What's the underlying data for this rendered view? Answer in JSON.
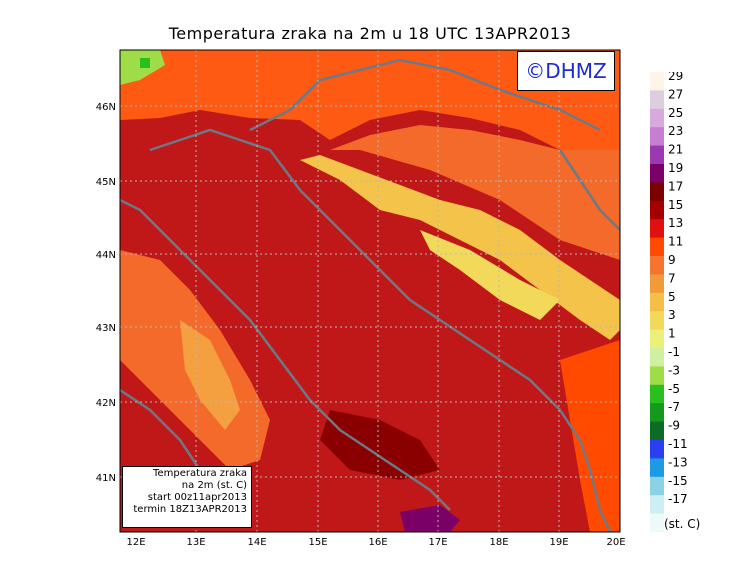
{
  "title": "Temperatura zraka na 2m u 18 UTC 13APR2013",
  "logo": "©DHMZ",
  "info": {
    "line1": "Temperatura zraka",
    "line2": "na 2m (st. C)",
    "line3": "start 00z11apr2013",
    "line4": "termin 18Z13APR2013"
  },
  "axes": {
    "lat_labels": [
      "46N",
      "45N",
      "44N",
      "43N",
      "42N",
      "41N"
    ],
    "lon_labels": [
      "12E",
      "13E",
      "14E",
      "15E",
      "16E",
      "17E",
      "18E",
      "19E",
      "20E"
    ]
  },
  "legend": {
    "unit": "(st. C)",
    "labels": [
      "29",
      "27",
      "25",
      "23",
      "21",
      "19",
      "17",
      "15",
      "13",
      "11",
      "9",
      "7",
      "5",
      "3",
      "1",
      "-1",
      "-3",
      "-5",
      "-7",
      "-9",
      "-11",
      "-13",
      "-15",
      "-17"
    ],
    "colors": [
      "#fff4e8",
      "#dccfdd",
      "#d8a9dc",
      "#c67fd0",
      "#9b3ab0",
      "#7a0068",
      "#7b0000",
      "#a50000",
      "#e01010",
      "#ff4a00",
      "#f37530",
      "#f09a3c",
      "#f4bf48",
      "#f3d95a",
      "#eaf07a",
      "#cff0a0",
      "#9edc48",
      "#29bf1f",
      "#139a1d",
      "#0c6b24",
      "#2a3ff0",
      "#1c9be4",
      "#8cd1e6",
      "#cdeef2",
      "#ecfbfa"
    ]
  }
}
